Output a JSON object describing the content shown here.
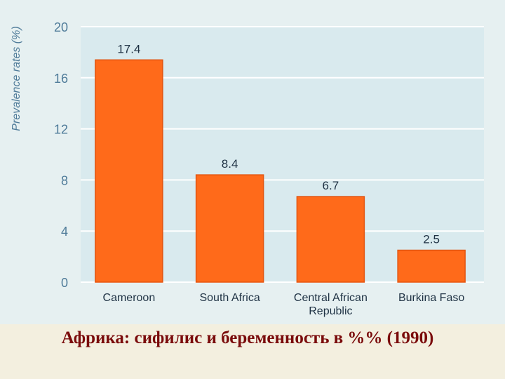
{
  "chart_data": {
    "type": "bar",
    "categories": [
      "Cameroon",
      "South Africa",
      "Central African Republic",
      "Burkina Faso"
    ],
    "category_lines": [
      [
        "Cameroon"
      ],
      [
        "South Africa"
      ],
      [
        "Central African",
        "Republic"
      ],
      [
        "Burkina Faso"
      ]
    ],
    "values": [
      17.4,
      8.4,
      6.7,
      2.5
    ],
    "data_labels": [
      "17.4",
      "8.4",
      "6.7",
      "2.5"
    ],
    "ylabel": "Prevalence rates (%)",
    "ylim": [
      0,
      20
    ],
    "yticks": [
      0,
      4,
      8,
      12,
      16,
      20
    ],
    "grid": true,
    "colors": {
      "bar": "#ff6a1a",
      "bar_edge": "#e25510",
      "plot_bg": "#d9eaee",
      "grid": "#ffffff",
      "text": "#4f7b99",
      "label_text": "#1f3244"
    }
  },
  "caption": "Африка: сифилис и беременность в %% (1990)"
}
